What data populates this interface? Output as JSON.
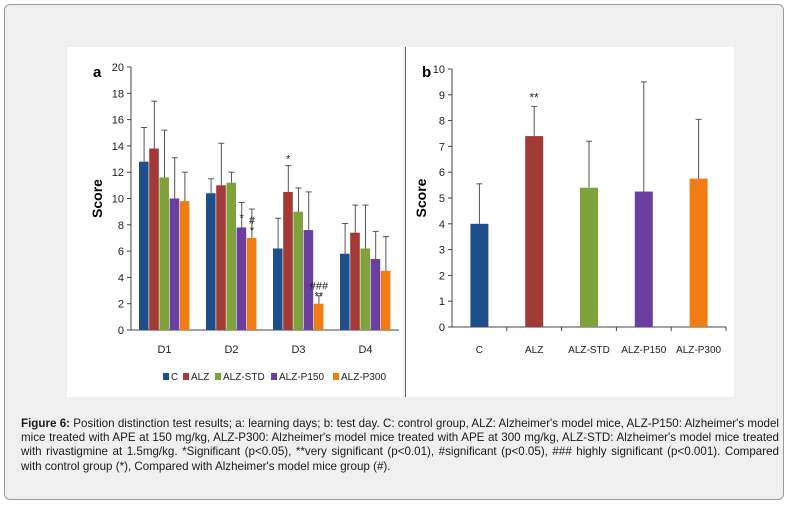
{
  "caption": {
    "label": "Figure 6:",
    "text": " Position distinction test results; a: learning days; b: test day. C: control group, ALZ: Alzheimer's model mice, ALZ-P150: Alzheimer's model mice treated with APE at 150 mg/kg, ALZ-P300: Alzheimer's model mice treated with APE at 300 mg/kg, ALZ-STD: Alzheimer's model mice treated with rivastigmine at 1.5mg/kg. *Significant (p<0.05), **very significant (p<0.01), #significant (p<0.05), ### highly significant (p<0.001). Compared with control group (*), Compared with Alzheimer's model mice group (#)."
  },
  "colors": {
    "C": "#1f4e8c",
    "ALZ": "#a23a36",
    "ALZ-STD": "#7ea33a",
    "ALZ-P150": "#6b3fa0",
    "ALZ-P300": "#f07c14"
  },
  "chart_data": [
    {
      "panel_label": "a",
      "type": "bar",
      "ylabel": "Score",
      "ylim": [
        0,
        20
      ],
      "yticks": [
        0,
        2,
        4,
        6,
        8,
        10,
        12,
        14,
        16,
        18,
        20
      ],
      "categories": [
        "D1",
        "D2",
        "D3",
        "D4"
      ],
      "series": [
        {
          "name": "C",
          "values": [
            12.8,
            10.4,
            6.2,
            5.8
          ],
          "errors": [
            2.6,
            1.1,
            2.3,
            2.3
          ]
        },
        {
          "name": "ALZ",
          "values": [
            13.8,
            11.0,
            10.5,
            7.4
          ],
          "errors": [
            3.6,
            3.2,
            2.0,
            2.1
          ]
        },
        {
          "name": "ALZ-STD",
          "values": [
            11.6,
            11.2,
            9.0,
            6.2
          ],
          "errors": [
            3.6,
            0.8,
            1.8,
            3.3
          ]
        },
        {
          "name": "ALZ-P150",
          "values": [
            10.0,
            7.8,
            7.6,
            5.4
          ],
          "errors": [
            3.1,
            1.9,
            2.9,
            2.1
          ]
        },
        {
          "name": "ALZ-P300",
          "values": [
            9.8,
            7.0,
            2.0,
            4.5
          ],
          "errors": [
            2.2,
            2.2,
            0.6,
            2.6
          ]
        }
      ],
      "annotations": [
        {
          "category": "D2",
          "series": "ALZ-P150",
          "text": "*"
        },
        {
          "category": "D2",
          "series": "ALZ-P300",
          "text": "#\n*"
        },
        {
          "category": "D3",
          "series": "ALZ",
          "text": "*"
        },
        {
          "category": "D3",
          "series": "ALZ-P300",
          "text": "###\n**"
        }
      ],
      "legend": [
        "C",
        "ALZ",
        "ALZ-STD",
        "ALZ-P150",
        "ALZ-P300"
      ],
      "legend_position": "bottom"
    },
    {
      "panel_label": "b",
      "type": "bar",
      "ylabel": "Score",
      "ylim": [
        0,
        10
      ],
      "yticks": [
        0,
        1,
        2,
        3,
        4,
        5,
        6,
        7,
        8,
        9,
        10
      ],
      "categories": [
        "C",
        "ALZ",
        "ALZ-STD",
        "ALZ-P150",
        "ALZ-P300"
      ],
      "values": [
        4.0,
        7.4,
        5.4,
        5.25,
        5.75
      ],
      "errors": [
        1.55,
        1.15,
        1.8,
        4.25,
        2.3
      ],
      "annotations": [
        {
          "category": "ALZ",
          "text": "**"
        }
      ]
    }
  ]
}
